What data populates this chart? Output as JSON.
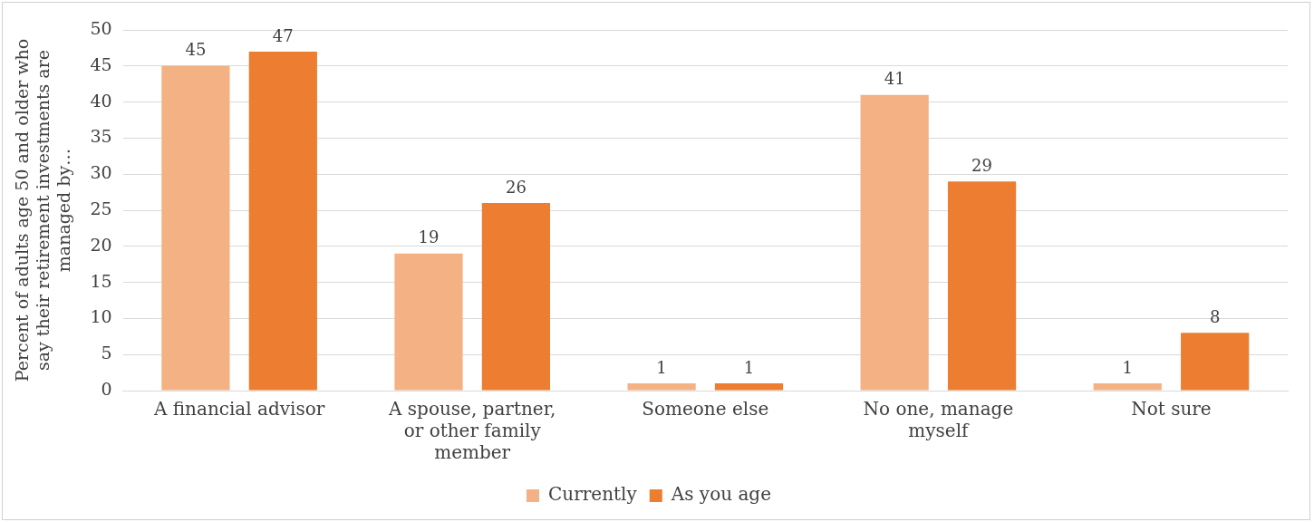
{
  "chart_data": {
    "type": "bar",
    "ylabel": "Percent of adults age 50 and older who say their retirement investments are managed by…",
    "categories": [
      "A financial advisor",
      "A spouse, partner, or other family member",
      "Someone else",
      "No one, manage myself",
      "Not sure"
    ],
    "series": [
      {
        "name": "Currently",
        "color": "#f4b183",
        "values": [
          45,
          19,
          1,
          41,
          1
        ]
      },
      {
        "name": "As you age",
        "color": "#ed7d31",
        "values": [
          47,
          26,
          1,
          29,
          8
        ]
      }
    ],
    "ylim": [
      0,
      50
    ],
    "yticks": [
      0,
      5,
      10,
      15,
      20,
      25,
      30,
      35,
      40,
      45,
      50
    ],
    "grid": "y",
    "legend": "bottom",
    "data_labels": true
  }
}
